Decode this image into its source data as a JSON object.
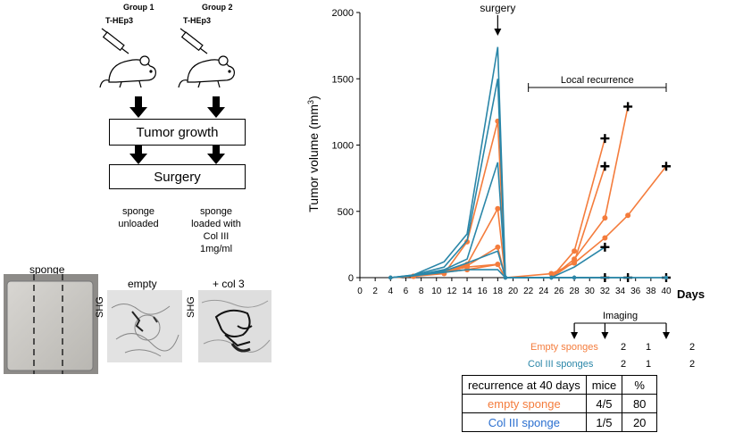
{
  "schema": {
    "group1_label": "Group 1",
    "group2_label": "Group 2",
    "cell_line_1": "T-HEp3",
    "cell_line_2": "T-HEp3",
    "tumor_growth_box": "Tumor growth",
    "surgery_box": "Surgery",
    "unloaded_caption": "sponge\nunloaded",
    "loaded_caption": "sponge\nloaded with\nCol III\n1mg/ml"
  },
  "images": {
    "sponge_label": "sponge",
    "empty_label": "empty",
    "col3_label": "+ col 3",
    "shg_label_1": "SHG",
    "shg_label_2": "SHG"
  },
  "chart_data": {
    "type": "line",
    "ylabel": "Tumor volume (mm3)",
    "xlabel": "Days",
    "xlim": [
      0,
      40
    ],
    "ylim": [
      0,
      2000
    ],
    "x_ticks": [
      0,
      2,
      4,
      6,
      8,
      10,
      12,
      14,
      16,
      18,
      20,
      22,
      24,
      26,
      28,
      30,
      32,
      34,
      36,
      38,
      40
    ],
    "y_ticks": [
      0,
      500,
      1000,
      1500,
      2000
    ],
    "surgery_annotation": "surgery",
    "surgery_day": 18,
    "recurrence_annotation": "Local recurrence",
    "recurrence_range": [
      22,
      40
    ],
    "imaging_label": "Imaging",
    "imaging_days": [
      28,
      32,
      40
    ],
    "colors": {
      "empty": "#f47c3c",
      "col3": "#2a86a8"
    },
    "series": [
      {
        "group": "empty",
        "x": [
          4,
          7,
          11,
          14,
          18,
          19,
          25,
          28,
          32
        ],
        "y": [
          0,
          10,
          30,
          270,
          1180,
          0,
          0,
          200,
          1050
        ],
        "end_marker": "plus"
      },
      {
        "group": "empty",
        "x": [
          4,
          7,
          11,
          14,
          18,
          19,
          25,
          28,
          32
        ],
        "y": [
          0,
          10,
          40,
          100,
          520,
          0,
          0,
          120,
          840
        ],
        "end_marker": "plus"
      },
      {
        "group": "empty",
        "x": [
          4,
          7,
          11,
          14,
          18,
          19,
          25,
          28,
          32,
          35
        ],
        "y": [
          0,
          10,
          40,
          90,
          230,
          0,
          0,
          140,
          450,
          1290
        ],
        "end_marker": "plus"
      },
      {
        "group": "empty",
        "x": [
          4,
          7,
          11,
          14,
          18,
          19,
          25,
          28,
          32,
          35,
          40
        ],
        "y": [
          0,
          10,
          40,
          80,
          100,
          0,
          30,
          110,
          300,
          470,
          840
        ],
        "end_marker": "plus"
      },
      {
        "group": "empty",
        "x": [
          4,
          7,
          11,
          14,
          18,
          19,
          25,
          28,
          32
        ],
        "y": [
          0,
          10,
          40,
          60,
          100,
          0,
          0,
          0,
          0
        ]
      },
      {
        "group": "col3",
        "x": [
          4,
          7,
          11,
          14,
          18,
          19,
          25,
          28,
          32
        ],
        "y": [
          0,
          20,
          120,
          330,
          1740,
          0,
          0,
          80,
          230
        ],
        "end_marker": "plus"
      },
      {
        "group": "col3",
        "x": [
          4,
          7,
          11,
          14,
          18,
          19,
          25,
          28,
          32
        ],
        "y": [
          0,
          20,
          80,
          280,
          1500,
          0,
          0,
          0,
          0
        ],
        "end_marker": "plus"
      },
      {
        "group": "col3",
        "x": [
          4,
          7,
          11,
          14,
          18,
          19,
          25,
          28,
          35
        ],
        "y": [
          0,
          15,
          60,
          140,
          870,
          0,
          0,
          0,
          0
        ],
        "end_marker": "plus"
      },
      {
        "group": "col3",
        "x": [
          4,
          7,
          11,
          14,
          18,
          19,
          25,
          28,
          40
        ],
        "y": [
          0,
          15,
          50,
          110,
          200,
          0,
          0,
          0,
          0
        ],
        "end_marker": "plus"
      },
      {
        "group": "col3",
        "x": [
          4,
          7,
          11,
          14,
          18,
          19,
          25,
          28,
          40
        ],
        "y": [
          0,
          15,
          40,
          60,
          60,
          0,
          0,
          0,
          0
        ]
      }
    ]
  },
  "imaging_counts": {
    "empty_label": "Empty sponges",
    "col3_label": "Col III sponges",
    "empty_values": [
      "2",
      "1",
      "2"
    ],
    "col3_values": [
      "2",
      "1",
      "2"
    ]
  },
  "table": {
    "headers": [
      "recurrence at 40 days",
      "mice",
      "%"
    ],
    "rows": [
      {
        "label": "empty sponge",
        "mice": "4/5",
        "pct": "80",
        "color": "#f47c3c"
      },
      {
        "label": "Col III sponge",
        "mice": "1/5",
        "pct": "20",
        "color": "#2a6fd0"
      }
    ]
  }
}
